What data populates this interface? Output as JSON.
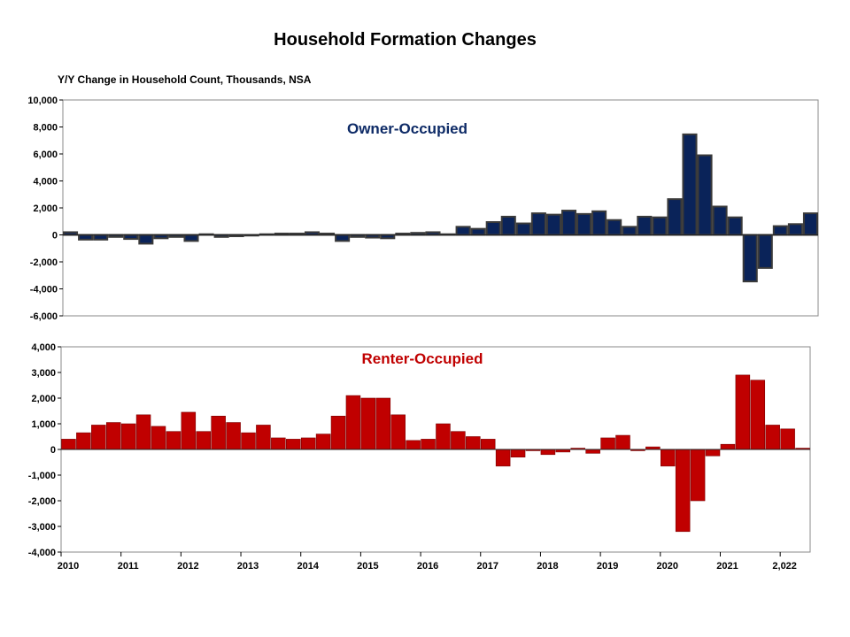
{
  "title": "Household Formation Changes",
  "subtitle": "Y/Y Change in Household Count, Thousands,  NSA",
  "chart_data": [
    {
      "type": "bar",
      "label": "Owner-Occupied",
      "color": "#0a2359",
      "label_color": "#0d2a66",
      "ylim": [
        -6000,
        10000
      ],
      "yticks": [
        10000,
        8000,
        6000,
        4000,
        2000,
        0,
        -2000,
        -4000,
        -6000
      ],
      "ytick_labels": [
        "10,000",
        "8,000",
        "6,000",
        "4,000",
        "2,000",
        "0",
        "-2,000",
        "-4,000",
        "-6,000"
      ],
      "grid": false,
      "values": [
        200,
        -350,
        -350,
        -150,
        -300,
        -650,
        -250,
        -150,
        -450,
        50,
        -150,
        -100,
        -50,
        50,
        100,
        100,
        200,
        100,
        -450,
        -150,
        -200,
        -250,
        100,
        150,
        200,
        50,
        600,
        450,
        950,
        1350,
        850,
        1600,
        1500,
        1800,
        1550,
        1750,
        1100,
        600,
        1350,
        1300,
        2650,
        7450,
        5900,
        2100,
        1300,
        -3450,
        -2450,
        650,
        800,
        1600
      ]
    },
    {
      "type": "bar",
      "label": "Renter-Occupied",
      "color": "#c00000",
      "label_color": "#c00000",
      "ylim": [
        -4000,
        4000
      ],
      "yticks": [
        4000,
        3000,
        2000,
        1000,
        0,
        -1000,
        -2000,
        -3000,
        -4000
      ],
      "ytick_labels": [
        "4,000",
        "3,000",
        "2,000",
        "1,000",
        "0",
        "-1,000",
        "-2,000",
        "-3,000",
        "-4,000"
      ],
      "grid": false,
      "x_tick_labels": [
        "2010",
        "2011",
        "2012",
        "2013",
        "2014",
        "2015",
        "2016",
        "2017",
        "2018",
        "2019",
        "2020",
        "2021",
        "2,022"
      ],
      "values": [
        400,
        650,
        950,
        1050,
        1000,
        1350,
        900,
        700,
        1450,
        700,
        1300,
        1050,
        650,
        950,
        450,
        400,
        450,
        600,
        1300,
        2100,
        2000,
        2000,
        1350,
        350,
        400,
        1000,
        700,
        500,
        400,
        -650,
        -300,
        -50,
        -200,
        -100,
        50,
        -150,
        450,
        550,
        -50,
        100,
        -650,
        -3200,
        -2000,
        -250,
        200,
        2900,
        2700,
        950,
        800,
        50
      ]
    }
  ]
}
